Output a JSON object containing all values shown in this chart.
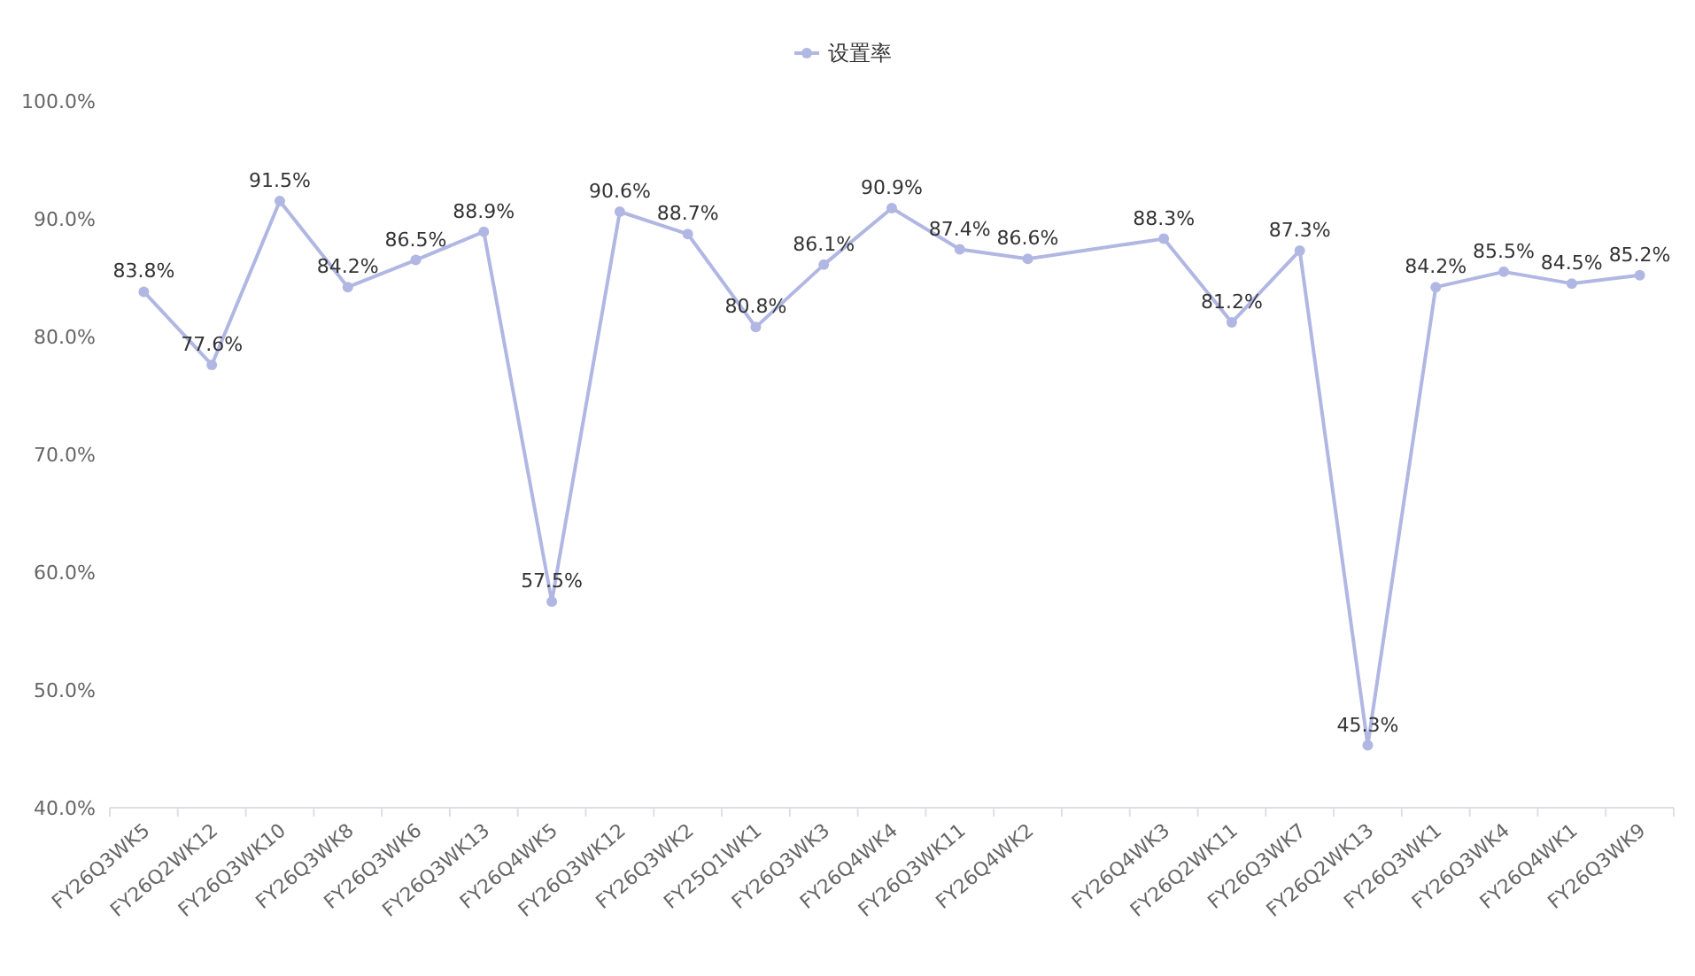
{
  "chart_data": {
    "type": "line",
    "categories": [
      "FY26Q3WK5",
      "FY26Q2WK12",
      "FY26Q3WK10",
      "FY26Q3WK8",
      "FY26Q3WK6",
      "FY26Q3WK13",
      "FY26Q4WK5",
      "FY26Q3WK12",
      "FY26Q3WK2",
      "FY25Q1WK1",
      "FY26Q3WK3",
      "FY26Q4WK4",
      "FY26Q3WK11",
      "FY26Q4WK2",
      null,
      "FY26Q4WK3",
      "FY26Q2WK11",
      "FY26Q3WK7",
      "FY26Q2WK13",
      "FY26Q3WK1",
      "FY26Q3WK4",
      "FY26Q4WK1",
      "FY26Q3WK9"
    ],
    "series": [
      {
        "name": "设置率",
        "color": "#b1b7e3",
        "values": [
          83.8,
          77.6,
          91.5,
          84.2,
          86.5,
          88.9,
          57.5,
          90.6,
          88.7,
          80.8,
          86.1,
          90.9,
          87.4,
          86.6,
          null,
          88.3,
          81.2,
          87.3,
          45.3,
          84.2,
          85.5,
          84.5,
          85.2
        ]
      }
    ],
    "value_labels": [
      "83.8%",
      "77.6%",
      "91.5%",
      "84.2%",
      "86.5%",
      "88.9%",
      "57.5%",
      "90.6%",
      "88.7%",
      "80.8%",
      "86.1%",
      "90.9%",
      "87.4%",
      "86.6%",
      null,
      "88.3%",
      "81.2%",
      "87.3%",
      "45.3%",
      "84.2%",
      "85.5%",
      "84.5%",
      "85.2%"
    ],
    "ylim": [
      40,
      100
    ],
    "yticks": [
      {
        "value": 40,
        "label": "40.0%"
      },
      {
        "value": 50,
        "label": "50.0%"
      },
      {
        "value": 60,
        "label": "60.0%"
      },
      {
        "value": 70,
        "label": "70.0%"
      },
      {
        "value": 80,
        "label": "80.0%"
      },
      {
        "value": 90,
        "label": "90.0%"
      },
      {
        "value": 100,
        "label": "100.0%"
      }
    ],
    "grid": false,
    "legend": "top",
    "marker": "circle",
    "line_style": "solid"
  }
}
